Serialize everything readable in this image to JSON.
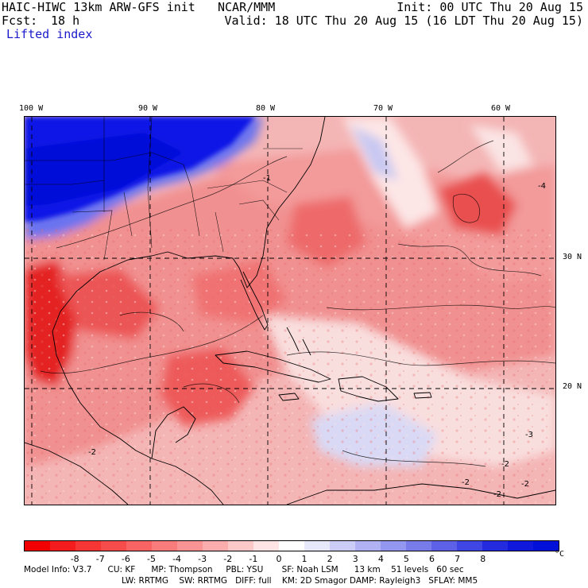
{
  "header": {
    "model_title": "HAIC-HIWC 13km ARW-GFS init",
    "center": "NCAR/MMM",
    "init_time": "Init: 00 UTC Thu 20 Aug 15",
    "fcst_label": "Fcst:",
    "fcst_value": "18 h",
    "valid_time": "Valid: 18 UTC Thu 20 Aug 15 (16 LDT Thu 20 Aug 15)",
    "field_name": "Lifted index"
  },
  "map": {
    "lon_labels": [
      "100 W",
      "90 W",
      "80 W",
      "70 W",
      "60 W"
    ],
    "lat_labels": [
      "30 N",
      "20 N"
    ],
    "contour_labels": [
      "-1",
      "-2",
      "-4",
      "-2",
      "-2",
      "-3",
      "-2",
      "-2"
    ],
    "colors": {
      "strong_stable": "#0a14e6",
      "moderate_stable": "#5a6cf0",
      "weak_stable": "#dcdcf6",
      "weak_unstable": "#f8c8c8",
      "moderate_unstable": "#f07070",
      "strong_unstable": "#e81818"
    }
  },
  "colorbar": {
    "tick_labels": [
      "-8",
      "-7",
      "-6",
      "-5",
      "-4",
      "-3",
      "-2",
      "-1",
      "0",
      "1",
      "2",
      "3",
      "4",
      "5",
      "6",
      "7",
      "8"
    ],
    "unit": "°C",
    "colors": [
      "#f00000",
      "#f41c1c",
      "#f63535",
      "#f74c4c",
      "#f86464",
      "#f97c7c",
      "#fa9494",
      "#fbacac",
      "#fdc8c8",
      "#fee4e4",
      "#ffffff",
      "#e8e8fb",
      "#cccdf7",
      "#b0b2f3",
      "#9497ef",
      "#787ceb",
      "#5c61e7",
      "#4046e3",
      "#242bdf",
      "#1018db",
      "#0010d8"
    ]
  },
  "model_info": {
    "line1": "Model Info: V3.7      CU: KF      MP: Thompson     PBL: YSU       SF: Noah LSM      13 km    51 levels   60 sec",
    "line2": "LW: RRTMG    SW: RRTMG   DIFF: full    KM: 2D Smagor DAMP: Rayleigh3   SFLAY: MM5"
  }
}
